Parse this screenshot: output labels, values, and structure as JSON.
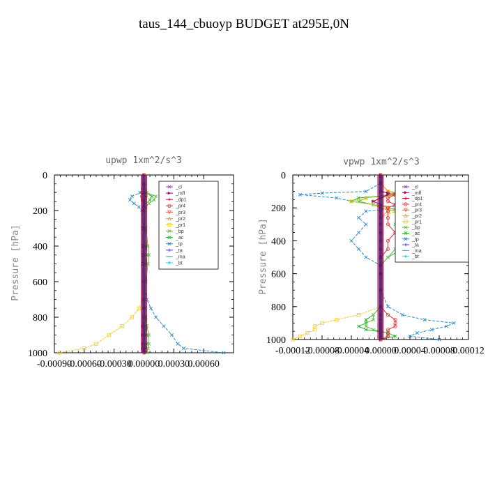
{
  "title": "taus_144_cbuoyp  BUDGET at295E,0N",
  "legend": [
    {
      "name": "_cl",
      "color": "#8a4fb0",
      "marker": "x"
    },
    {
      "name": "_mfl",
      "color": "#a0007a",
      "marker": "tri-right"
    },
    {
      "name": "_dp1",
      "color": "#c0003a",
      "marker": "plus"
    },
    {
      "name": "_pr4",
      "color": "#e0303a",
      "marker": "circle"
    },
    {
      "name": "_pr3",
      "color": "#f05a3a",
      "marker": "tri-down"
    },
    {
      "name": "_pr2",
      "color": "#ff9a3a",
      "marker": "tri-up"
    },
    {
      "name": "_pr1",
      "color": "#f4cc30",
      "marker": "square"
    },
    {
      "name": "_bp",
      "color": "#5cc04a",
      "marker": "x"
    },
    {
      "name": "_ac",
      "color": "#2ab02a",
      "marker": "x"
    },
    {
      "name": "_tp",
      "color": "#2a8acc",
      "marker": "x"
    },
    {
      "name": "_ta",
      "color": "#3a3acc",
      "marker": "plus"
    },
    {
      "name": "_ma",
      "color": "#2ab0c8",
      "marker": "dash"
    },
    {
      "name": "_bt",
      "color": "#2adcec",
      "marker": "diamond"
    }
  ],
  "chart_data": [
    {
      "type": "line",
      "title": "upwp   1xm^2/s^3",
      "ylabel": "Pressure [hPa]",
      "xlabel": "",
      "xlim": [
        -0.0009,
        0.0009
      ],
      "ylim": [
        1000,
        0
      ],
      "xticks": [
        "-0.00090",
        "-0.00060",
        "-0.00030",
        "0.00000",
        "0.00030",
        "0.00060"
      ],
      "xtick_values": [
        -0.0009,
        -0.0006,
        -0.0003,
        0.0,
        0.0003,
        0.0006
      ],
      "yticks": [
        0,
        200,
        400,
        600,
        800,
        1000
      ],
      "pressure": [
        0,
        50,
        100,
        120,
        140,
        160,
        180,
        200,
        300,
        400,
        450,
        500,
        600,
        700,
        750,
        800,
        850,
        900,
        950,
        975,
        1000
      ],
      "series": [
        {
          "name": "_ac",
          "values": [
            0,
            0,
            2e-05,
            8e-05,
            6e-05,
            2e-05,
            1e-05,
            0.0,
            1e-05,
            2e-05,
            3e-05,
            2e-05,
            1e-05,
            1e-05,
            0.0,
            1e-05,
            2e-05,
            3e-05,
            3e-05,
            2e-05,
            1e-05
          ]
        },
        {
          "name": "_bp",
          "values": [
            0,
            0,
            3e-05,
            0.00012,
            0.0001,
            5e-05,
            2e-05,
            1e-05,
            2e-05,
            4e-05,
            5e-05,
            4e-05,
            2e-05,
            1e-05,
            1e-05,
            2e-05,
            3e-05,
            5e-05,
            5e-05,
            4e-05,
            3e-05
          ]
        },
        {
          "name": "_tp",
          "values": [
            0,
            0,
            -4e-05,
            -0.00012,
            -0.00014,
            -0.0001,
            -5e-05,
            -2e-05,
            -1e-05,
            -1e-05,
            -1e-05,
            -1e-05,
            0.0,
            3e-05,
            7e-05,
            0.00012,
            0.0002,
            0.00028,
            0.00034,
            0.0004,
            0.0008
          ]
        },
        {
          "name": "_pr1",
          "values": [
            0,
            0,
            1e-05,
            2e-05,
            1e-05,
            0.0,
            0.0,
            0.0,
            0.0,
            0.0,
            0.0,
            0.0,
            0.0,
            -1e-05,
            -5e-05,
            -0.00012,
            -0.00022,
            -0.00035,
            -0.00048,
            -0.0006,
            -0.00085
          ]
        },
        {
          "name": "_mfl",
          "values": [
            0,
            0,
            1e-05,
            2e-05,
            1e-05,
            1e-05,
            0.0,
            0.0,
            0.0,
            0.0,
            0.0,
            0.0,
            0.0,
            0.0,
            0.0,
            0.0,
            0.0,
            1e-05,
            1e-05,
            1e-05,
            1e-05
          ]
        },
        {
          "name": "_pr4",
          "values": [
            0,
            0,
            -1e-05,
            -2e-05,
            -1e-05,
            0.0,
            0.0,
            0.0,
            0.0,
            0.0,
            0.0,
            0.0,
            0.0,
            0.0,
            0.0,
            0.0,
            -1e-05,
            -1e-05,
            -1e-05,
            -1e-05,
            0.0
          ]
        }
      ]
    },
    {
      "type": "line",
      "title": "vpwp   1xm^2/s^3",
      "ylabel": "Pressure [hPa]",
      "xlabel": "",
      "xlim": [
        -0.00012,
        0.00012
      ],
      "ylim": [
        1000,
        0
      ],
      "xticks": [
        "-0.00012",
        "-0.00008",
        "-0.00004",
        "0.00000",
        "0.00004",
        "0.00008",
        "0.00012"
      ],
      "xtick_values": [
        -0.00012,
        -8e-05,
        -4e-05,
        0.0,
        4e-05,
        8e-05,
        0.00012
      ],
      "yticks": [
        0,
        200,
        400,
        600,
        800,
        1000
      ],
      "pressure": [
        0,
        50,
        100,
        110,
        120,
        140,
        160,
        180,
        200,
        220,
        260,
        300,
        350,
        400,
        450,
        500,
        550,
        600,
        700,
        800,
        850,
        880,
        900,
        920,
        940,
        960,
        980,
        1000
      ],
      "series": [
        {
          "name": "_tp",
          "values": [
            0,
            0,
            -2e-05,
            -8e-05,
            -0.00011,
            -6e-05,
            -4e-05,
            -1e-05,
            3e-05,
            -2e-05,
            -3e-05,
            -2e-05,
            -3e-05,
            -4e-05,
            -3e-05,
            -2e-05,
            0.0,
            0.0,
            0.0,
            1e-05,
            3e-05,
            6e-05,
            0.0001,
            9e-05,
            7e-05,
            5e-05,
            4e-05,
            8e-05
          ]
        },
        {
          "name": "_ac",
          "values": [
            0,
            0,
            1e-05,
            3e-05,
            2e-05,
            -3e-05,
            -4e-05,
            -1e-05,
            1e-05,
            3e-05,
            4e-05,
            3e-05,
            4e-05,
            5e-05,
            3e-05,
            1e-05,
            0.0,
            0.0,
            0.0,
            0.0,
            -1e-05,
            -2e-05,
            -2e-05,
            -3e-05,
            -2e-05,
            1e-05,
            2e-05,
            0.0
          ]
        },
        {
          "name": "_bp",
          "values": [
            0,
            0,
            1e-05,
            2e-05,
            1e-05,
            -2e-05,
            -3e-05,
            -1e-05,
            0.0,
            2e-05,
            3e-05,
            2e-05,
            3e-05,
            4e-05,
            2e-05,
            1e-05,
            0.0,
            0.0,
            0.0,
            0.0,
            -1e-05,
            -1e-05,
            -2e-05,
            -2e-05,
            -1e-05,
            1e-05,
            1e-05,
            0.0
          ]
        },
        {
          "name": "_pr1",
          "values": [
            0,
            0,
            1e-05,
            4e-05,
            3e-05,
            -2e-05,
            -4e-05,
            -1e-05,
            1e-05,
            2e-05,
            0.0,
            0.0,
            0.0,
            0.0,
            0.0,
            0.0,
            0.0,
            0.0,
            0.0,
            0.0,
            -3e-05,
            -6e-05,
            -8e-05,
            -9e-05,
            -9e-05,
            -0.0001,
            -0.00011,
            -0.00012
          ]
        },
        {
          "name": "_pr2",
          "values": [
            0,
            0,
            1e-05,
            3e-05,
            2e-05,
            0.0,
            -1e-05,
            0.0,
            1e-05,
            1e-05,
            0.0,
            0.0,
            0.0,
            0.0,
            0.0,
            0.0,
            0.0,
            0.0,
            0.0,
            0.0,
            0.0,
            0.0,
            0.0,
            0.0,
            0.0,
            0.0,
            0.0,
            0.0
          ]
        },
        {
          "name": "_pr4",
          "values": [
            0,
            0,
            0.0,
            1e-05,
            2e-05,
            1e-05,
            1e-05,
            2e-05,
            1e-05,
            1e-05,
            1e-05,
            1e-05,
            2e-05,
            1e-05,
            1e-05,
            0.0,
            0.0,
            0.0,
            0.0,
            0.0,
            1e-05,
            2e-05,
            2e-05,
            2e-05,
            1e-05,
            1e-05,
            1e-05,
            0.0
          ]
        },
        {
          "name": "_mfl",
          "values": [
            0,
            0,
            0.0,
            1e-05,
            1e-05,
            0.0,
            -1e-05,
            0.0,
            0.0,
            0.0,
            0.0,
            0.0,
            0.0,
            0.0,
            0.0,
            0.0,
            0.0,
            0.0,
            0.0,
            0.0,
            0.0,
            0.0,
            0.0,
            0.0,
            0.0,
            0.0,
            0.0,
            0.0
          ]
        }
      ]
    }
  ]
}
